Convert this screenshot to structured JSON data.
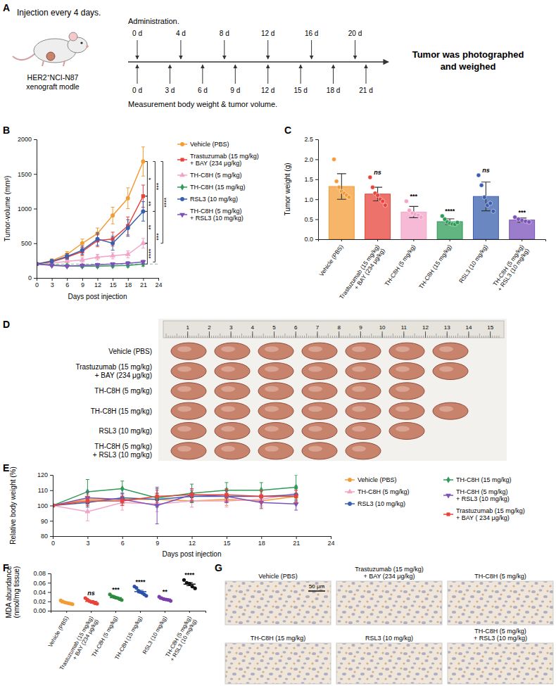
{
  "schematic": {
    "panel": "A",
    "note_top": "Injection every 4 days.",
    "model_label": [
      "HER2⁺NCI-N87",
      "xenograft modle"
    ],
    "administration_title": "Administration.",
    "administration": [
      {
        "value": 0,
        "label": "0 d"
      },
      {
        "value": 4,
        "label": "4 d"
      },
      {
        "value": 8,
        "label": "8 d"
      },
      {
        "value": 12,
        "label": "12 d"
      },
      {
        "value": 16,
        "label": "16 d"
      },
      {
        "value": 20,
        "label": "20 d"
      }
    ],
    "measurement": [
      {
        "value": 0,
        "label": "0 d"
      },
      {
        "value": 3,
        "label": "3 d"
      },
      {
        "value": 6,
        "label": "6 d"
      },
      {
        "value": 9,
        "label": "9 d"
      },
      {
        "value": 12,
        "label": "12 d"
      },
      {
        "value": 15,
        "label": "15 d"
      },
      {
        "value": 18,
        "label": "18 d"
      },
      {
        "value": 21,
        "label": "21 d"
      }
    ],
    "measurement_title": "Measurement body weight & tumor volume.",
    "outcome": "Tumor was photographed and weighed"
  },
  "chart_data": [
    {
      "panel": "B",
      "type": "line",
      "x_label": "Days post injection",
      "y_label": "Tumor-volume (mm³)",
      "x": [
        0,
        3,
        6,
        9,
        12,
        15,
        18,
        21
      ],
      "xlim": [
        0,
        24
      ],
      "xticks": [
        0,
        3,
        6,
        9,
        12,
        15,
        18,
        21,
        24
      ],
      "ylim": [
        0,
        2000
      ],
      "yticks": [
        0,
        500,
        1000,
        1500,
        2000
      ],
      "legend": "right",
      "hline": 200,
      "series": [
        {
          "name": "Vehicle (PBS)",
          "color": "#F39C35",
          "marker": "circle",
          "values": [
            200,
            250,
            340,
            500,
            640,
            900,
            1150,
            1680
          ],
          "errors": [
            10,
            25,
            40,
            60,
            80,
            120,
            150,
            210
          ]
        },
        {
          "name": "Trastuzumab (15 mg/kg) + BAY (234 μg/kg)",
          "color": "#E8433B",
          "marker": "square",
          "values": [
            200,
            230,
            300,
            380,
            540,
            560,
            750,
            1180
          ],
          "errors": [
            10,
            25,
            35,
            60,
            90,
            100,
            130,
            160
          ]
        },
        {
          "name": "TH-C8H (5 mg/kg)",
          "color": "#F4A3C8",
          "marker": "triangle",
          "values": [
            200,
            210,
            240,
            260,
            300,
            320,
            340,
            500
          ],
          "errors": [
            10,
            20,
            25,
            30,
            40,
            45,
            50,
            70
          ]
        },
        {
          "name": "TH-C8H (15 mg/kg)",
          "color": "#2E9B57",
          "marker": "diamond",
          "values": [
            200,
            185,
            175,
            170,
            170,
            175,
            180,
            200
          ],
          "errors": [
            10,
            15,
            15,
            20,
            20,
            20,
            25,
            30
          ]
        },
        {
          "name": "RSL3 (10 mg/kg)",
          "color": "#3A5FAE",
          "marker": "circle",
          "values": [
            200,
            240,
            310,
            400,
            560,
            500,
            720,
            960
          ],
          "errors": [
            10,
            25,
            40,
            60,
            90,
            100,
            120,
            140
          ]
        },
        {
          "name": "TH-C8H (5 mg/kg) + RSL3 (10 mg/kg)",
          "color": "#7B52B9",
          "marker": "triangle-down",
          "values": [
            200,
            180,
            170,
            180,
            190,
            200,
            210,
            230
          ],
          "errors": [
            10,
            15,
            15,
            20,
            20,
            20,
            25,
            25
          ]
        }
      ],
      "annotations": [
        {
          "text": "*",
          "y": [
            1180,
            1680
          ]
        },
        {
          "text": "**",
          "y": [
            960,
            1180
          ]
        },
        {
          "text": "**",
          "y": [
            500,
            960
          ]
        },
        {
          "text": "***",
          "y": [
            960,
            1680
          ]
        },
        {
          "text": "***",
          "y": [
            230,
            960
          ]
        },
        {
          "text": "****",
          "y": [
            500,
            1680
          ]
        },
        {
          "text": "****",
          "y": [
            200,
            500
          ]
        }
      ]
    },
    {
      "panel": "C",
      "type": "bar",
      "y_label": "Tumor weight (g)",
      "categories": [
        "Vehicle (PBS)",
        "Trastuzumab (15 mg/kg) + BAY (234 μg/kg)",
        "TH-C8H (5 mg/kg)",
        "TH-C8H (15 mg/kg)",
        "RSL3 (10 mg/kg)",
        "TH-C8H (5 mg/kg) + RSL3 (10 mg/kg)"
      ],
      "values": [
        1.32,
        1.13,
        0.68,
        0.44,
        1.07,
        0.48
      ],
      "errors": [
        0.32,
        0.17,
        0.14,
        0.07,
        0.36,
        0.05
      ],
      "points": [
        [
          2.0,
          1.45,
          1.3,
          1.2,
          1.15,
          1.1,
          1.05
        ],
        [
          1.55,
          1.3,
          1.15,
          1.1,
          1.0,
          0.95,
          0.85
        ],
        [
          0.95,
          0.72,
          0.65,
          0.62,
          0.6,
          0.55
        ],
        [
          0.58,
          0.5,
          0.43,
          0.4,
          0.38,
          0.37,
          0.42
        ],
        [
          1.6,
          1.35,
          1.05,
          0.85,
          0.9,
          0.7
        ],
        [
          0.55,
          0.5,
          0.47,
          0.45,
          0.43
        ]
      ],
      "significance": [
        null,
        "ns",
        "***",
        "****",
        "ns",
        "***"
      ],
      "colors": [
        "#F39C35",
        "#E8433B",
        "#F4A3C8",
        "#2E9B57",
        "#3A5FAE",
        "#7B52B9"
      ],
      "ylim": [
        0,
        2.5
      ],
      "yticks": [
        {
          "value": 0,
          "label": "0.0"
        },
        {
          "value": 0.5,
          "label": "0.5"
        },
        {
          "value": 1,
          "label": "1.0"
        },
        {
          "value": 1.5,
          "label": "1.5"
        },
        {
          "value": 2,
          "label": "2.0"
        },
        {
          "value": 2.5,
          "label": "2.5"
        }
      ]
    },
    {
      "panel": "E",
      "type": "line",
      "x_label": "Days post injection",
      "y_label": "Relative body weight (%)",
      "x": [
        0,
        3,
        6,
        9,
        12,
        15,
        18,
        21
      ],
      "xlim": [
        0,
        24
      ],
      "xticks": [
        0,
        3,
        6,
        9,
        12,
        15,
        18,
        21,
        24
      ],
      "ylim": [
        80,
        120
      ],
      "yticks": [
        80,
        90,
        100,
        110,
        120
      ],
      "legend": "right",
      "series": [
        {
          "name": "Vehicle (PBS)",
          "color": "#F39C35",
          "marker": "circle",
          "values": [
            100,
            104,
            104,
            104,
            103,
            104,
            103,
            106
          ],
          "errors": [
            0,
            3,
            3,
            4,
            4,
            4,
            4,
            4
          ]
        },
        {
          "name": "TH-C8H (5 mg/kg)",
          "color": "#F4A3C8",
          "marker": "triangle",
          "values": [
            100,
            96,
            102,
            101,
            103,
            103,
            104,
            108
          ],
          "errors": [
            0,
            6,
            5,
            5,
            4,
            4,
            4,
            5
          ]
        },
        {
          "name": "RSL3 (10 mg/kg)",
          "color": "#3A5FAE",
          "marker": "circle",
          "values": [
            100,
            102,
            105,
            104,
            106,
            106,
            106,
            107
          ],
          "errors": [
            0,
            3,
            3,
            4,
            4,
            4,
            4,
            4
          ]
        },
        {
          "name": "TH-C8H (15 mg/kg)",
          "color": "#2E9B57",
          "marker": "diamond",
          "values": [
            100,
            109,
            111,
            105,
            108,
            110,
            110,
            112
          ],
          "errors": [
            0,
            8,
            5,
            6,
            6,
            5,
            5,
            8
          ]
        },
        {
          "name": "TH-C8H (5 mg/kg) + RSL3 (10 mg/kg)",
          "color": "#7B52B9",
          "marker": "triangle-down",
          "values": [
            100,
            105,
            104,
            100,
            107,
            106,
            102,
            101
          ],
          "errors": [
            0,
            4,
            4,
            12,
            4,
            4,
            4,
            4
          ]
        },
        {
          "name": "Trastuzumab (15 mg/kg) + BAY ( 234 μg/kg)",
          "color": "#E8433B",
          "marker": "square",
          "values": [
            100,
            103,
            103,
            106,
            107,
            107,
            106,
            106
          ],
          "errors": [
            0,
            3,
            3,
            4,
            4,
            4,
            4,
            4
          ]
        }
      ]
    },
    {
      "panel": "F",
      "type": "scatter",
      "y_label": "MDA abundance (nmol/mg tissue)",
      "categories": [
        "Vehicle (PBS)",
        "Trastuzumab (15 mg/kg) + BAY (234 μg/kg)",
        "TH-C8H (5 mg/kg)",
        "TH-C8H (15 mg/kg)",
        "RSL3 (10 mg/kg)",
        "TH-C8H (5 mg/kg) + RSL3 (10 mg/kg)"
      ],
      "values": [
        0.017,
        0.02,
        0.028,
        0.041,
        0.025,
        0.057
      ],
      "errors": [
        0.001,
        0.0017,
        0.0015,
        0.0027,
        0.0013,
        0.0032
      ],
      "points": [
        [
          0.022,
          0.02,
          0.018,
          0.017,
          0.016,
          0.015,
          0.014
        ],
        [
          0.027,
          0.024,
          0.021,
          0.019,
          0.018,
          0.016,
          0.015
        ],
        [
          0.035,
          0.031,
          0.03,
          0.028,
          0.027,
          0.025,
          0.023
        ],
        [
          0.052,
          0.049,
          0.043,
          0.04,
          0.038,
          0.035,
          0.032
        ],
        [
          0.03,
          0.027,
          0.025,
          0.024,
          0.023,
          0.021
        ],
        [
          0.066,
          0.06,
          0.058,
          0.052,
          0.048
        ]
      ],
      "significance": [
        null,
        "ns",
        "***",
        "****",
        "**",
        "****"
      ],
      "colors": [
        "#F39C35",
        "#E8433B",
        "#2E8B3E",
        "#2B50A8",
        "#7A3FA8",
        "#111111"
      ],
      "ylim": [
        0,
        0.08
      ],
      "yticks": [
        {
          "value": 0,
          "label": "0.00"
        },
        {
          "value": 0.02,
          "label": "0.02"
        },
        {
          "value": 0.04,
          "label": "0.04"
        },
        {
          "value": 0.06,
          "label": "0.06"
        },
        {
          "value": 0.08,
          "label": "0.08"
        }
      ]
    }
  ],
  "photo": {
    "panel": "D",
    "ruler": [
      1,
      2,
      3,
      4,
      5,
      6,
      7,
      8,
      9,
      10,
      11,
      12,
      13,
      14,
      15
    ],
    "rows": [
      {
        "label": "Vehicle (PBS)",
        "tumors": 7
      },
      {
        "label": "Trastuzumab (15 mg/kg) + BAY (234 μg/kg)",
        "tumors": 7
      },
      {
        "label": "TH-C8H (5 mg/kg)",
        "tumors": 6
      },
      {
        "label": "TH-C8H (15 mg/kg)",
        "tumors": 7
      },
      {
        "label": "RSL3 (10 mg/kg)",
        "tumors": 6
      },
      {
        "label": "TH-C8H (5 mg/kg) + RSL3 (10 mg/kg)",
        "tumors": 5
      }
    ]
  },
  "histology": {
    "panel": "G",
    "titles": [
      "Vehicle (PBS)",
      "Trastuzumab (15 mg/kg) + BAY (234 μg/kg)",
      "TH-C8H (5 mg/kg)",
      "TH-C8H (15 mg/kg)",
      "RSL3 (10 mg/kg)",
      "TH-C8H (5 mg/kg) + RSL3 (10 mg/kg)"
    ],
    "scale_bar": "50 μm"
  }
}
